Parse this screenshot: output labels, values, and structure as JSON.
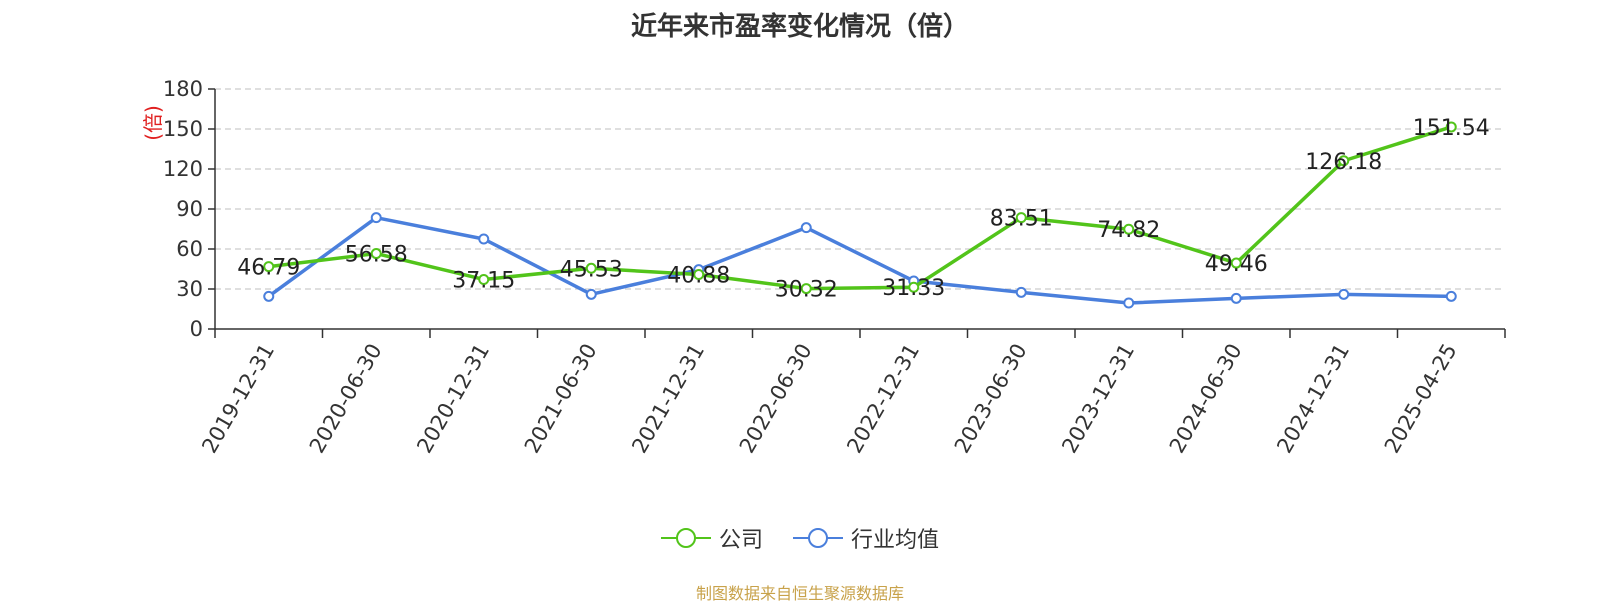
{
  "chart_data": {
    "type": "line",
    "title": "近年来市盈率变化情况（倍）",
    "ylabel": "(倍)",
    "ylim": [
      0,
      180
    ],
    "yticks": [
      0,
      30,
      60,
      90,
      120,
      150,
      180
    ],
    "grid": true,
    "legend_position": "bottom",
    "categories": [
      "2019-12-31",
      "2020-06-30",
      "2020-12-31",
      "2021-06-30",
      "2021-12-31",
      "2022-06-30",
      "2022-12-31",
      "2023-06-30",
      "2023-12-31",
      "2024-06-30",
      "2024-12-31",
      "2025-04-25"
    ],
    "series": [
      {
        "name": "公司",
        "color": "#52c41a",
        "values": [
          46.79,
          56.58,
          37.15,
          45.53,
          40.88,
          30.32,
          31.33,
          83.51,
          74.82,
          49.46,
          126.18,
          151.54
        ],
        "labels": [
          "46.79",
          "56.58",
          "37.15",
          "45.53",
          "40.88",
          "30.32",
          "31.33",
          "83.51",
          "74.82",
          "49.46",
          "126.18",
          "151.54"
        ]
      },
      {
        "name": "行业均值",
        "color": "#4a7fdc",
        "values": [
          24.5,
          83.5,
          67.5,
          26.0,
          44.5,
          76.0,
          36.0,
          27.5,
          19.5,
          23.0,
          26.0,
          24.5
        ]
      }
    ]
  },
  "source": "制图数据来自恒生聚源数据库"
}
